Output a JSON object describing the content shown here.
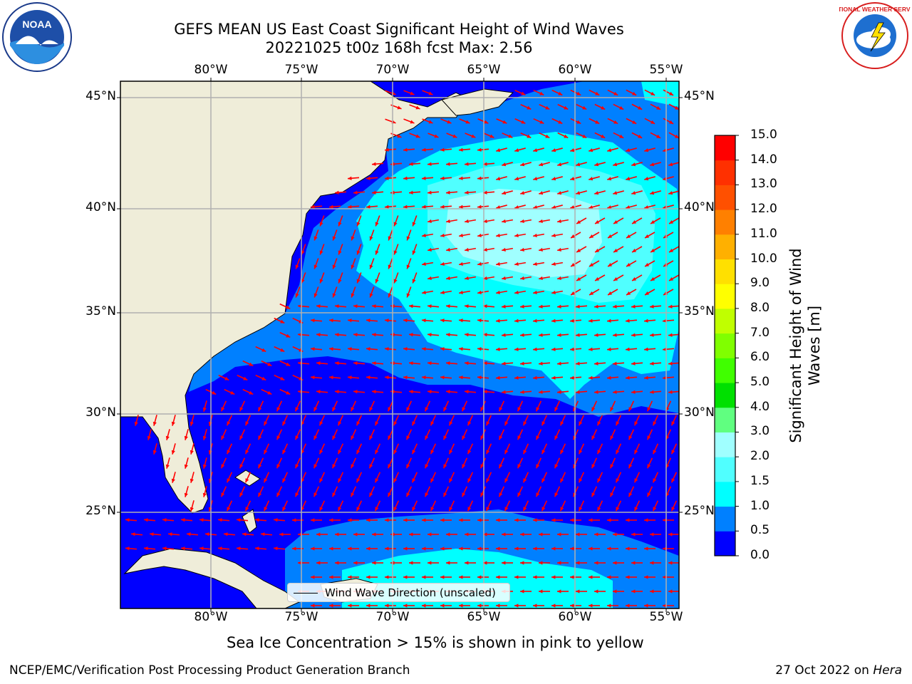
{
  "title": {
    "line1": "GEFS MEAN US East Coast Significant Height of Wind Waves",
    "line2": "20221025 t00z 168h fcst   Max: 2.56"
  },
  "logos": [
    {
      "name": "noaa-logo",
      "text": "NOAA"
    },
    {
      "name": "nws-logo",
      "text": "NATIONAL WEATHER SERVICE"
    }
  ],
  "map": {
    "lon_labels": [
      "80°W",
      "75°W",
      "70°W",
      "65°W",
      "60°W",
      "55°W"
    ],
    "lat_labels": [
      "45°N",
      "40°N",
      "35°N",
      "30°N",
      "25°N"
    ],
    "colors": {
      "land": "#efedd9",
      "gridline": "#b0b0b0",
      "arrow": "#ff0000"
    }
  },
  "legend": {
    "label": "Wind Wave Direction (unscaled)"
  },
  "colorbar": {
    "label": "Significant Height of Wind Waves [m]",
    "ticks": [
      "0.0",
      "0.5",
      "1.0",
      "1.5",
      "2.0",
      "3.0",
      "4.0",
      "5.0",
      "6.0",
      "7.0",
      "8.0",
      "9.0",
      "10.0",
      "11.0",
      "12.0",
      "13.0",
      "14.0",
      "15.0"
    ],
    "colors": [
      "#0000ff",
      "#0080ff",
      "#00ffff",
      "#50ffff",
      "#a0ffff",
      "#60ff80",
      "#00e000",
      "#40ff00",
      "#80ff00",
      "#c0ff00",
      "#ffff00",
      "#ffe000",
      "#ffb000",
      "#ff8000",
      "#ff5000",
      "#ff3000",
      "#ff0000"
    ]
  },
  "note": "Sea Ice Concentration > 15% is shown in pink to yellow",
  "footer": {
    "left": "NCEP/EMC/Verification Post Processing Product Generation Branch",
    "date": "27 Oct 2022 on ",
    "machine": "Hera"
  }
}
